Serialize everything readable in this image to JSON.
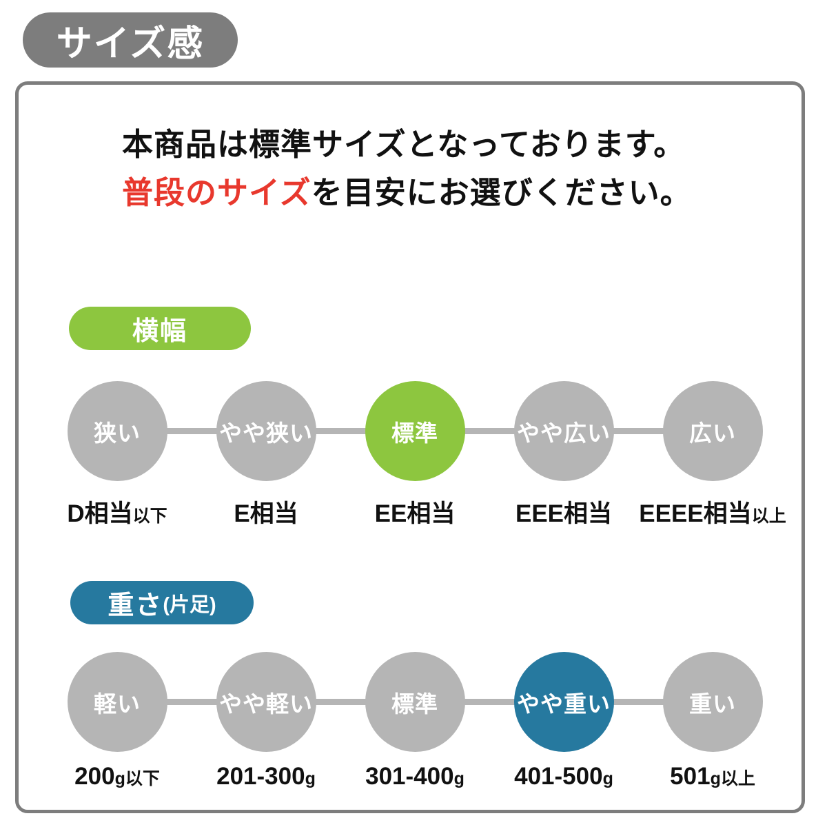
{
  "title_badge": "サイズ感",
  "intro": {
    "line1": "本商品は標準サイズとなっております。",
    "line2_highlight": "普段のサイズ",
    "line2_rest": "を目安にお選びください。"
  },
  "colors": {
    "accent_green": "#8dc63f",
    "accent_teal": "#26799f",
    "highlight_red": "#e8382d",
    "circle_gray": "#b5b5b5",
    "frame_gray": "#7d7d7d"
  },
  "width_section": {
    "badge": {
      "main": "横幅",
      "suffix": ""
    },
    "active_index": 2,
    "items": [
      {
        "label": "狭い",
        "sublabel_main": "D相当",
        "sublabel_suffix": "以下"
      },
      {
        "label": "やや狭い",
        "sublabel_main": "E相当",
        "sublabel_suffix": ""
      },
      {
        "label": "標準",
        "sublabel_main": "EE相当",
        "sublabel_suffix": ""
      },
      {
        "label": "やや広い",
        "sublabel_main": "EEE相当",
        "sublabel_suffix": ""
      },
      {
        "label": "広い",
        "sublabel_main": "EEEE相当",
        "sublabel_suffix": "以上"
      }
    ]
  },
  "weight_section": {
    "badge": {
      "main": "重さ",
      "suffix": "(片足)"
    },
    "active_index": 3,
    "items": [
      {
        "label": "軽い",
        "sublabel_main": "200",
        "sublabel_suffix": "g以下"
      },
      {
        "label": "やや軽い",
        "sublabel_main": "201-300",
        "sublabel_suffix": "g"
      },
      {
        "label": "標準",
        "sublabel_main": "301-400",
        "sublabel_suffix": "g"
      },
      {
        "label": "やや重い",
        "sublabel_main": "401-500",
        "sublabel_suffix": "g"
      },
      {
        "label": "重い",
        "sublabel_main": "501",
        "sublabel_suffix": "g以上"
      }
    ]
  }
}
